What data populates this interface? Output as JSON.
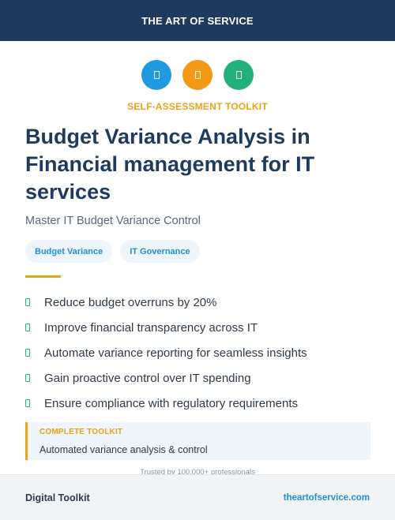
{
  "header": {
    "brand": "THE ART OF SERVICE"
  },
  "icons": [
    {
      "name": "document-icon",
      "color": "#1f9ae0"
    },
    {
      "name": "document-icon",
      "color": "#f29a13"
    },
    {
      "name": "document-icon",
      "color": "#22b07d"
    }
  ],
  "kicker": "SELF-ASSESSMENT TOOLKIT",
  "title": "Budget Variance Analysis in Financial management for IT services",
  "subtitle": "Master IT Budget Variance Control",
  "tags": [
    "Budget Variance",
    "IT Governance"
  ],
  "benefits": [
    "Reduce budget overruns by 20%",
    "Improve financial transparency across IT",
    "Automate variance reporting for seamless insights",
    "Gain proactive control over IT spending",
    "Ensure compliance with regulatory requirements"
  ],
  "toolkit": {
    "label": "COMPLETE TOOLKIT",
    "description": "Automated variance analysis & control"
  },
  "trusted": "Trusted by 100,000+ professionals",
  "footer": {
    "left": "Digital Toolkit",
    "right": "theartofservice.com"
  },
  "colors": {
    "navy": "#1e3a5f",
    "accent_orange": "#e8a317",
    "link_blue": "#1f8fd6",
    "check_green": "#2bb673"
  }
}
